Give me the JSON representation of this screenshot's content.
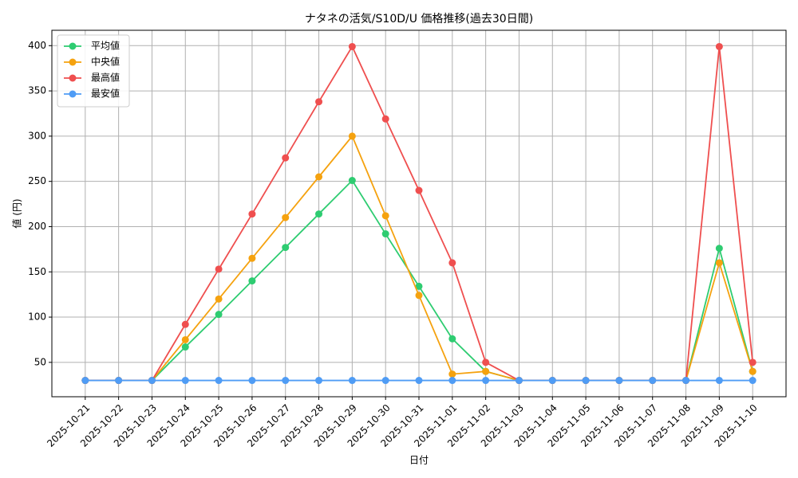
{
  "chart_data": {
    "type": "line",
    "title": "ナタネの活気/S10D/U 価格推移(過去30日間)",
    "x_label": "日付",
    "y_label": "値 (円)",
    "categories": [
      "2025-10-21",
      "2025-10-22",
      "2025-10-23",
      "2025-10-24",
      "2025-10-25",
      "2025-10-26",
      "2025-10-27",
      "2025-10-28",
      "2025-10-29",
      "2025-10-30",
      "2025-10-31",
      "2025-11-01",
      "2025-11-02",
      "2025-11-03",
      "2025-11-04",
      "2025-11-05",
      "2025-11-06",
      "2025-11-07",
      "2025-11-08",
      "2025-11-09",
      "2025-11-10"
    ],
    "series": [
      {
        "name": "平均値",
        "color": "#2ecc71",
        "values": [
          30,
          30,
          30,
          67,
          103,
          140,
          177,
          214,
          251,
          192,
          134,
          76,
          40,
          30,
          30,
          30,
          30,
          30,
          30,
          176,
          40
        ]
      },
      {
        "name": "中央値",
        "color": "#f5a20f",
        "values": [
          30,
          30,
          30,
          75,
          120,
          165,
          210,
          255,
          300,
          212,
          124,
          37,
          40,
          30,
          30,
          30,
          30,
          30,
          30,
          160,
          40
        ]
      },
      {
        "name": "最高値",
        "color": "#ef4f4f",
        "values": [
          30,
          30,
          30,
          92,
          153,
          214,
          276,
          338,
          399,
          319,
          240,
          160,
          50,
          30,
          30,
          30,
          30,
          30,
          30,
          399,
          50
        ]
      },
      {
        "name": "最安値",
        "color": "#4f9cf5",
        "values": [
          30,
          30,
          30,
          30,
          30,
          30,
          30,
          30,
          30,
          30,
          30,
          30,
          30,
          30,
          30,
          30,
          30,
          30,
          30,
          30,
          30
        ]
      }
    ],
    "ylim": [
      12,
      417
    ],
    "yticks": [
      50,
      100,
      150,
      200,
      250,
      300,
      350,
      400
    ],
    "grid": true,
    "legend": "upper-left"
  }
}
